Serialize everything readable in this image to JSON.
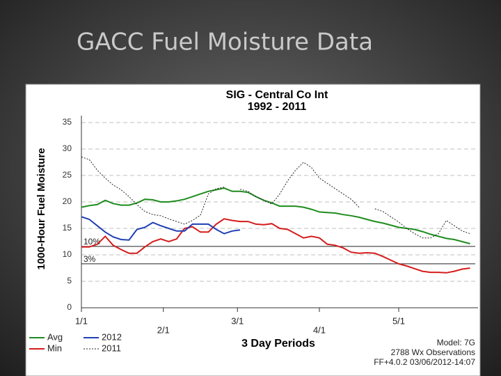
{
  "slide_title": "GACC Fuel Moisture Data",
  "chart_data": {
    "type": "line",
    "title": "SIG - Central Co Int",
    "subtitle": "1992 - 2011",
    "ylabel": "1000-Hour Fuel Moisture",
    "xlabel": "3 Day Periods",
    "x": [
      0,
      1,
      2,
      3,
      4,
      5,
      6,
      7,
      8,
      9,
      10,
      11,
      12,
      13,
      14,
      15,
      16,
      17,
      18,
      19,
      20,
      21,
      22,
      23,
      24,
      25,
      26,
      27,
      28,
      29,
      30,
      31,
      32,
      33,
      34,
      35,
      36,
      37,
      38,
      39,
      40,
      41,
      42,
      43,
      44,
      45,
      46,
      47,
      48,
      49
    ],
    "series": [
      {
        "name": "Avg",
        "color": "#1e8c1e",
        "dash": "none",
        "values": [
          19,
          19.3,
          19.5,
          20.3,
          19.7,
          19.4,
          19.4,
          19.8,
          20.5,
          20.4,
          20,
          20,
          20.2,
          20.5,
          21,
          21.5,
          22,
          22.3,
          22.6,
          22,
          22,
          21.8,
          21,
          20.3,
          19.8,
          19.2,
          19.2,
          19.2,
          19,
          18.6,
          18.1,
          18,
          17.9,
          17.6,
          17.4,
          17.1,
          16.7,
          16.3,
          16,
          15.6,
          15.2,
          15,
          14.8,
          14.4,
          13.9,
          13.5,
          13.1,
          12.9,
          12.5,
          12.1
        ]
      },
      {
        "name": "Min",
        "color": "#d41c1c",
        "dash": "none",
        "values": [
          11.5,
          11.5,
          12,
          13.5,
          11.8,
          11,
          10.3,
          10.3,
          11.5,
          12.5,
          13,
          12.5,
          13,
          15,
          15.3,
          14.3,
          14.3,
          15.8,
          16.8,
          16.5,
          16.3,
          16.3,
          15.8,
          15.7,
          15.9,
          15,
          14.8,
          14,
          13.2,
          13.5,
          13.2,
          12,
          11.8,
          11.3,
          10.5,
          10.3,
          10.4,
          10.3,
          9.7,
          9,
          8.3,
          7.9,
          7.4,
          6.9,
          6.7,
          6.7,
          6.6,
          6.9,
          7.3,
          7.5
        ]
      },
      {
        "name": "2012",
        "color": "#1f3fb4",
        "dash": "none",
        "values": [
          17.2,
          16.7,
          15.5,
          14.3,
          13.4,
          12.9,
          12.8,
          14.8,
          15.2,
          16.1,
          15.5,
          15,
          14.5,
          14.5,
          15.8,
          15.8,
          15.8,
          14.8,
          14,
          14.5,
          14.7,
          null,
          null,
          null,
          null,
          null,
          null,
          null,
          null,
          null,
          null,
          null,
          null,
          null,
          null,
          null,
          null,
          null,
          null,
          null,
          null,
          null,
          null,
          null,
          null,
          null,
          null,
          null,
          null,
          null
        ]
      },
      {
        "name": "2011",
        "color": "#222222",
        "dash": "2 2",
        "values": [
          28.5,
          28,
          26,
          24.5,
          23.2,
          22.3,
          21,
          19.5,
          18.2,
          17.6,
          17.4,
          16.8,
          16.3,
          15.8,
          16.5,
          17.5,
          21.5,
          22.5,
          22.8,
          null,
          22.4,
          22,
          21,
          20.3,
          19.6,
          21.5,
          24,
          26,
          27.5,
          26.5,
          24.5,
          23.5,
          22.5,
          21.5,
          20.5,
          19,
          null,
          18.7,
          18.2,
          17.2,
          16.2,
          15,
          14,
          13.2,
          13.2,
          14,
          16.5,
          15.5,
          14.5,
          14
        ]
      }
    ],
    "xlim": [
      0,
      50
    ],
    "xticks": [
      {
        "value": 0,
        "label": "1/1"
      },
      {
        "value": 10.33,
        "label": "2/1"
      },
      {
        "value": 19.67,
        "label": "3/1"
      },
      {
        "value": 30,
        "label": "4/1"
      },
      {
        "value": 40,
        "label": "5/1"
      }
    ],
    "ylim": [
      0,
      35
    ],
    "yticks": [
      0,
      5,
      10,
      15,
      20,
      25,
      30,
      35
    ],
    "grid": true,
    "reference_lines": [
      {
        "value": 11.6,
        "label": "10%"
      },
      {
        "value": 8.3,
        "label": "3%"
      }
    ],
    "notes": [
      "Model: 7G",
      "2788 Wx Observations",
      "FF+4.0.2 03/06/2012-14:07"
    ]
  }
}
